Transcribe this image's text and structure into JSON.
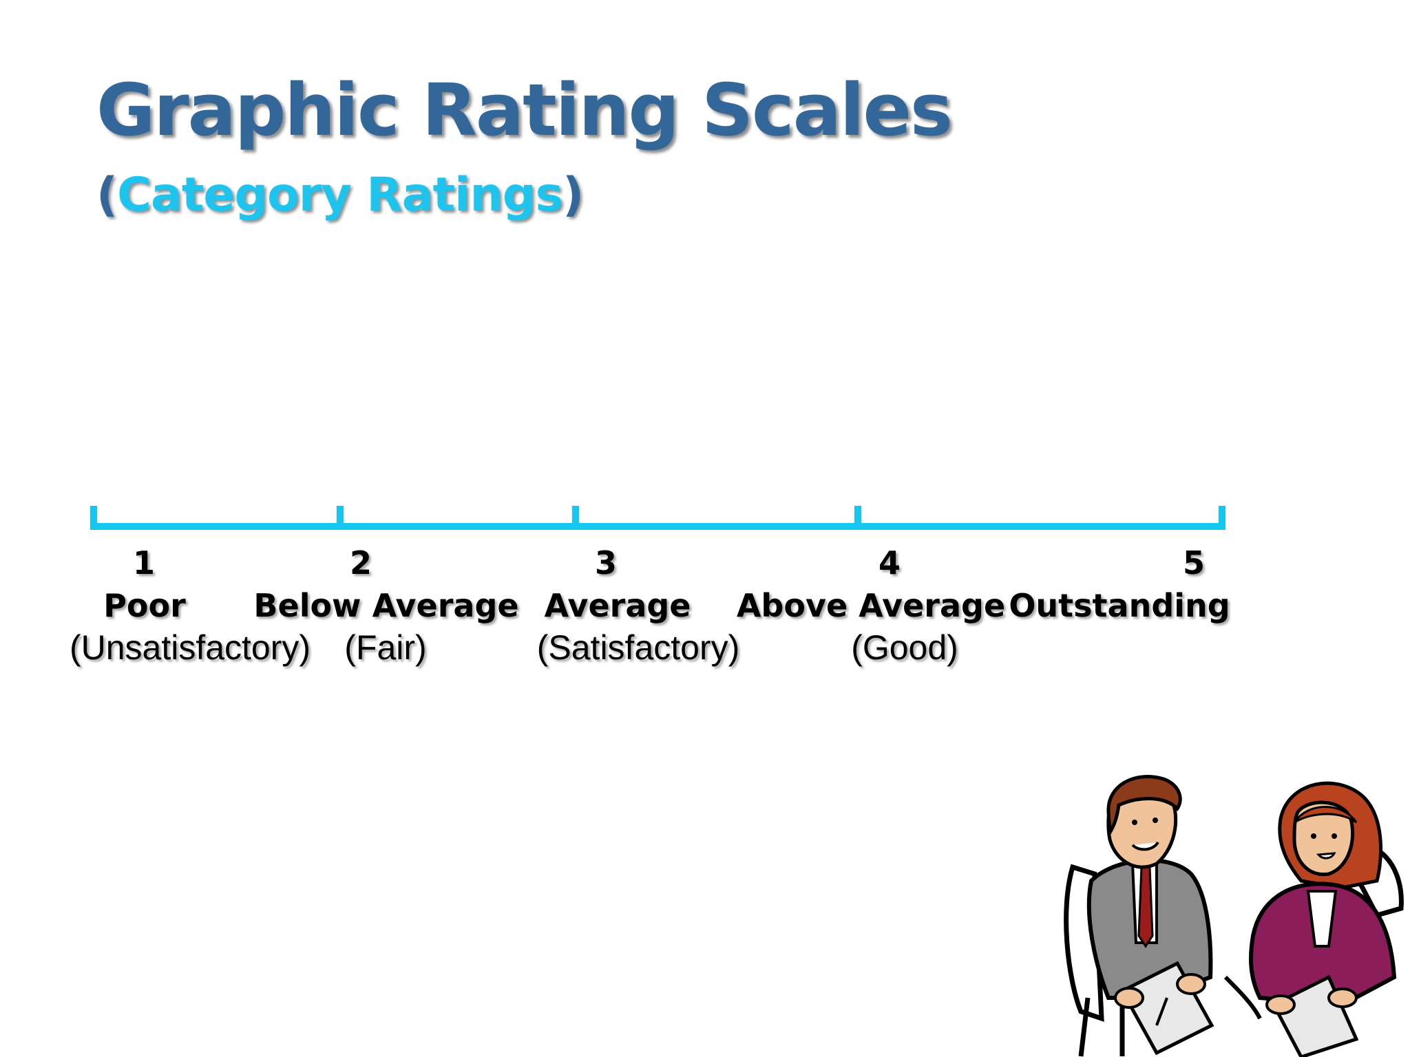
{
  "title": "Graphic Rating Scales",
  "subtitle": {
    "open_paren": "(",
    "text": "Category Ratings",
    "close_paren": ")"
  },
  "colors": {
    "title": "#336699",
    "subtitle": "#1ec4ee",
    "scale_line": "#14c6f0"
  },
  "scale": {
    "points": [
      {
        "number": "1",
        "label": "Poor",
        "description": "(Unsatisfactory)"
      },
      {
        "number": "2",
        "label": "Below Average",
        "description": "(Fair)"
      },
      {
        "number": "3",
        "label": "Average",
        "description": "(Satisfactory)"
      },
      {
        "number": "4",
        "label": "Above Average",
        "description": "(Good)"
      },
      {
        "number": "5",
        "label": "Outstanding",
        "description": ""
      }
    ]
  },
  "illustration": "two-people-meeting-clipart"
}
